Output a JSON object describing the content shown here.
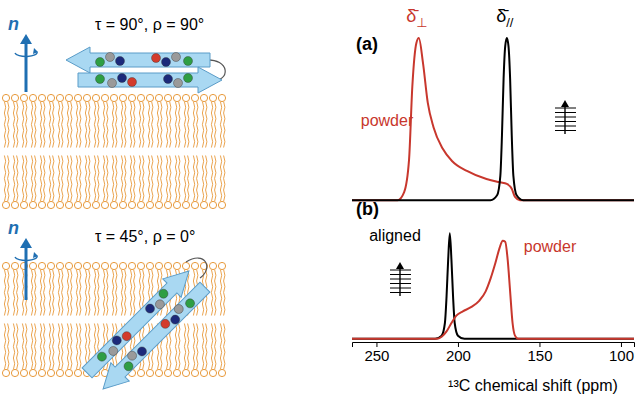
{
  "chart_data": [
    {
      "type": "line",
      "title": "(a)",
      "xlim": [
        265,
        92
      ],
      "ylim": [
        -0.03,
        1.05
      ],
      "tick_labels": false,
      "annotations": [
        "δ̄⊥",
        "δ̄//"
      ],
      "cartoon": {
        "normal": "n",
        "angles": "τ = 90°, ρ = 90°"
      },
      "series": [
        {
          "name": "powder",
          "color": "#c8372d",
          "x": [
            265,
            237,
            233,
            230,
            228,
            225.5,
            224,
            221.5,
            218.5,
            215,
            209.5,
            203.5,
            194.5,
            182.5,
            174,
            170,
            167,
            165,
            162,
            92
          ],
          "values": [
            0,
            0,
            0.05,
            0.25,
            0.7,
            0.97,
            1,
            0.85,
            0.6,
            0.45,
            0.32,
            0.24,
            0.18,
            0.13,
            0.11,
            0.1,
            0.07,
            0.02,
            0,
            0
          ]
        },
        {
          "color": "#000000",
          "x": [
            265,
            180,
            176,
            174,
            173,
            172,
            171,
            170,
            169,
            168,
            167,
            166,
            164,
            160,
            92
          ],
          "values": [
            0,
            0,
            0.03,
            0.15,
            0.4,
            0.75,
            0.95,
            1,
            0.95,
            0.75,
            0.4,
            0.15,
            0.03,
            0,
            0
          ]
        }
      ]
    },
    {
      "type": "line",
      "title": "(b)",
      "xlim": [
        265,
        92
      ],
      "ylim": [
        -0.03,
        1.05
      ],
      "xticks": [
        250,
        200,
        150,
        100
      ],
      "xlabel": "¹³C chemical shift (ppm)",
      "tick_labels": "x",
      "cartoon": {
        "normal": "n",
        "angles": "τ = 45°, ρ = 0°"
      },
      "series": [
        {
          "name": "aligned",
          "color": "#000000",
          "x": [
            265,
            214,
            210,
            208,
            207,
            206,
            205,
            204,
            203,
            202,
            200,
            196,
            92
          ],
          "values": [
            0,
            0,
            0.03,
            0.15,
            0.4,
            0.75,
            1,
            0.75,
            0.4,
            0.15,
            0.03,
            0,
            0
          ]
        },
        {
          "name": "powder",
          "color": "#c8372d",
          "x": [
            265,
            213,
            210,
            207,
            204,
            201,
            197,
            192,
            187,
            183,
            180,
            177,
            174.5,
            172.5,
            171,
            169.5,
            168,
            166.5,
            165,
            163,
            92
          ],
          "values": [
            0,
            0,
            0.02,
            0.07,
            0.15,
            0.22,
            0.26,
            0.3,
            0.36,
            0.45,
            0.57,
            0.72,
            0.86,
            0.93,
            0.92,
            0.75,
            0.45,
            0.15,
            0.03,
            0,
            0
          ]
        }
      ]
    }
  ]
}
